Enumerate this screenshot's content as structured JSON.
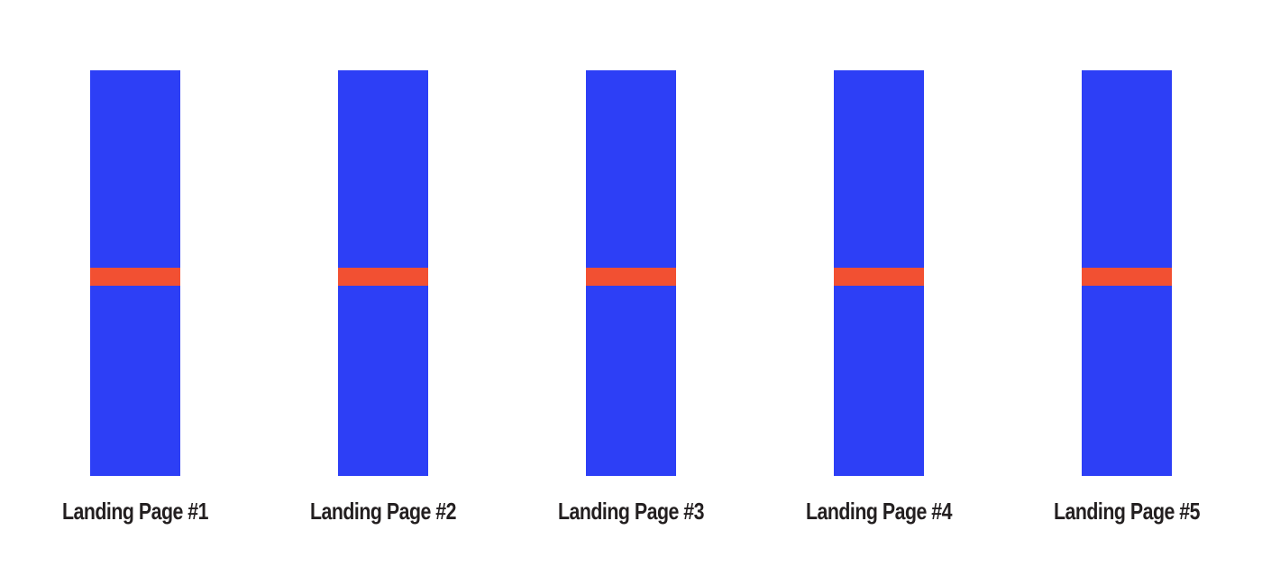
{
  "colors": {
    "bar_main": "#2d3ff6",
    "bar_marker": "#f25032",
    "label_text": "#231f20",
    "background": "#ffffff"
  },
  "marker_position": 0.5,
  "pages": [
    {
      "label": "Landing Page #1"
    },
    {
      "label": "Landing Page #2"
    },
    {
      "label": "Landing Page #3"
    },
    {
      "label": "Landing Page #4"
    },
    {
      "label": "Landing Page #5"
    }
  ]
}
